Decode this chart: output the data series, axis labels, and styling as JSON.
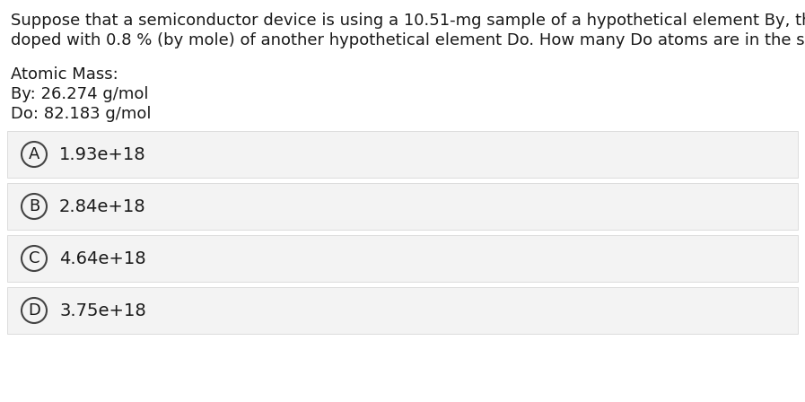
{
  "question_line1": "Suppose that a semiconductor device is using a 10.51-mg sample of a hypothetical element By, that is",
  "question_line2": "doped with 0.8 % (by mole) of another hypothetical element Do. How many Do atoms are in the sample?",
  "atomic_mass_label": "Atomic Mass:",
  "by_label": "By: 26.274 g/mol",
  "do_label": "Do: 82.183 g/mol",
  "options": [
    {
      "letter": "A",
      "text": "1.93e+18"
    },
    {
      "letter": "B",
      "text": "2.84e+18"
    },
    {
      "letter": "C",
      "text": "4.64e+18"
    },
    {
      "letter": "D",
      "text": "3.75e+18"
    }
  ],
  "bg_color": "#ffffff",
  "option_bg_color": "#f3f3f3",
  "option_border_color": "#d8d8d8",
  "text_color": "#1a1a1a",
  "circle_edge_color": "#444444",
  "font_size_question": 13.0,
  "font_size_info": 13.0,
  "font_size_option": 14.0,
  "font_size_letter": 13.0
}
